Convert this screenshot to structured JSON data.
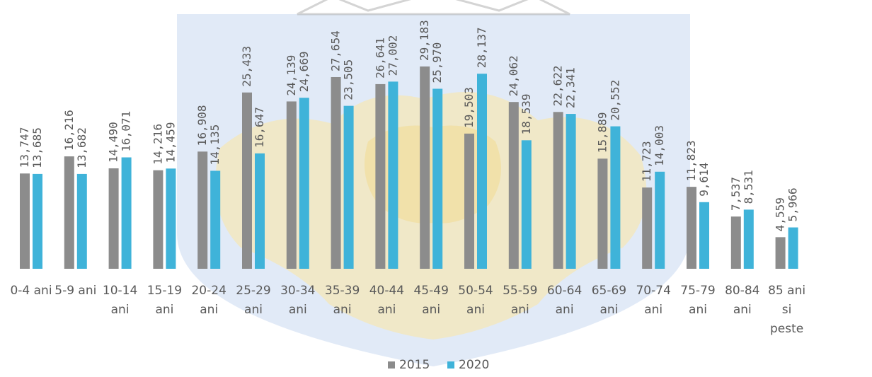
{
  "colors": {
    "series_2015": "#8c8c8c",
    "series_2020": "#3fb3d9",
    "text": "#595959",
    "watermark_blue": "#c9d9f0",
    "watermark_gold": "#f6e7b4"
  },
  "chart_data": {
    "type": "bar",
    "title": "",
    "xlabel": "",
    "ylabel": "",
    "ylim": [
      0,
      30000
    ],
    "grid": false,
    "legend_position": "bottom",
    "categories": [
      [
        "0-4 ani"
      ],
      [
        "5-9 ani"
      ],
      [
        "10-14",
        "ani"
      ],
      [
        "15-19",
        "ani"
      ],
      [
        "20-24",
        "ani"
      ],
      [
        "25-29",
        "ani"
      ],
      [
        "30-34",
        "ani"
      ],
      [
        "35-39",
        "ani"
      ],
      [
        "40-44",
        "ani"
      ],
      [
        "45-49",
        "ani"
      ],
      [
        "50-54",
        "ani"
      ],
      [
        "55-59",
        "ani"
      ],
      [
        "60-64",
        "ani"
      ],
      [
        "65-69",
        "ani"
      ],
      [
        "70-74",
        "ani"
      ],
      [
        "75-79",
        "ani"
      ],
      [
        "80-84",
        "ani"
      ],
      [
        "85 ani",
        "si",
        "peste"
      ]
    ],
    "series": [
      {
        "name": "2015",
        "values": [
          13747,
          16216,
          14490,
          14216,
          16908,
          25433,
          24139,
          27654,
          26641,
          29183,
          19503,
          24062,
          22622,
          15889,
          11723,
          11823,
          7537,
          4559
        ],
        "labels": [
          "13,747",
          "16,216",
          "14,490",
          "14,216",
          "16,908",
          "25,433",
          "24,139",
          "27,654",
          "26,641",
          "29,183",
          "19,503",
          "24,062",
          "22,622",
          "15,889",
          "11,723",
          "11,823",
          "7,537",
          "4,559"
        ]
      },
      {
        "name": "2020",
        "values": [
          13685,
          13682,
          16071,
          14459,
          14135,
          16647,
          24669,
          23505,
          27002,
          25970,
          28137,
          18539,
          22341,
          20552,
          14003,
          9614,
          8531,
          5966
        ],
        "labels": [
          "13,685",
          "13,682",
          "16,071",
          "14,459",
          "14,135",
          "16,647",
          "24,669",
          "23,505",
          "27,002",
          "25,970",
          "28,137",
          "18,539",
          "22,341",
          "20,552",
          "14,003",
          "9,614",
          "8,531",
          "5,966"
        ]
      }
    ]
  }
}
